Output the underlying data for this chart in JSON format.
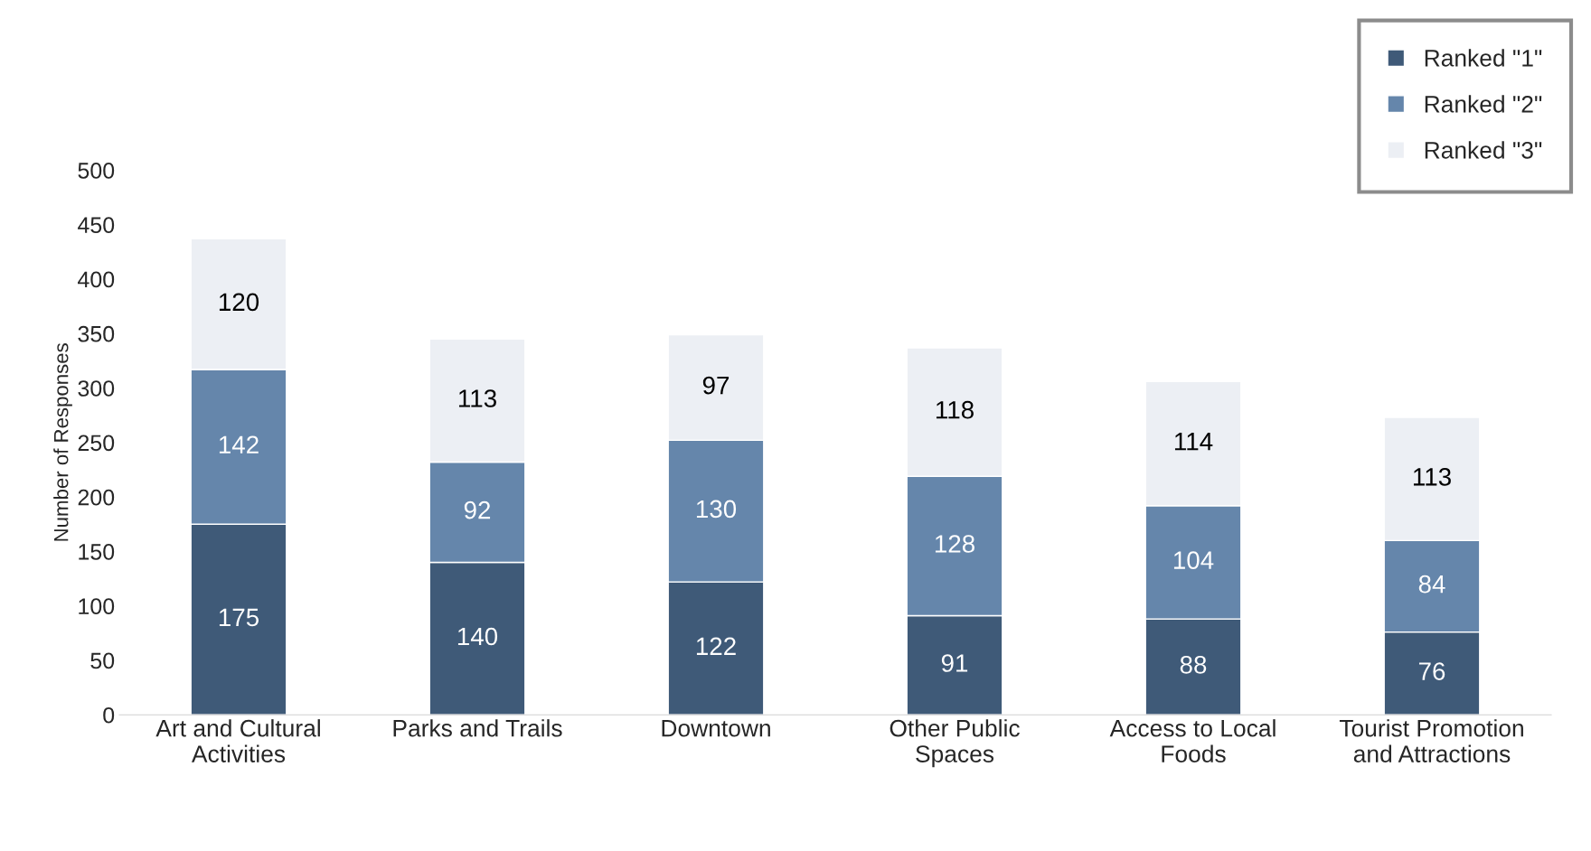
{
  "chart_data": {
    "type": "bar",
    "stacked": true,
    "ylabel": "Number of Responses",
    "categories": [
      "Art and Cultural\nActivities",
      "Parks and Trails",
      "Downtown",
      "Other Public\nSpaces",
      "Access to Local\nFoods",
      "Tourist Promotion\nand Attractions"
    ],
    "series": [
      {
        "name": "Ranked \"1\"",
        "color": "#3f5a78",
        "values": [
          175,
          140,
          122,
          91,
          88,
          76
        ]
      },
      {
        "name": "Ranked \"2\"",
        "color": "#6586ab",
        "values": [
          142,
          92,
          130,
          128,
          104,
          84
        ]
      },
      {
        "name": "Ranked \"3\"",
        "color": "#eceff4",
        "values": [
          120,
          113,
          97,
          118,
          114,
          113
        ]
      }
    ],
    "ylim": [
      0,
      500
    ],
    "yticks": [
      0,
      50,
      100,
      150,
      200,
      250,
      300,
      350,
      400,
      450,
      500
    ],
    "data_labels": true,
    "grid": false,
    "legend": "top right"
  }
}
